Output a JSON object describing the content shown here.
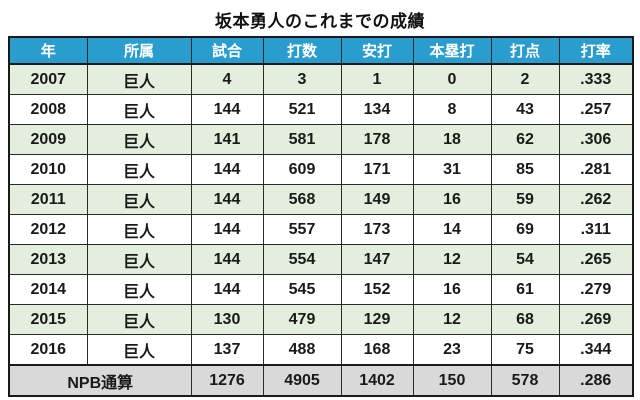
{
  "title": "坂本勇人のこれまでの成績",
  "colors": {
    "header_bg": "#2b9cce",
    "header_text": "#ffffff",
    "row_bg": "#ffffff",
    "row_alt_bg": "#e3efdc",
    "total_bg": "#d9d9d9",
    "border": "#1a1a1a"
  },
  "chart_data": {
    "type": "table",
    "title": "坂本勇人のこれまでの成績",
    "columns": [
      "年",
      "所属",
      "試合",
      "打数",
      "安打",
      "本塁打",
      "打点",
      "打率"
    ],
    "rows": [
      [
        "2007",
        "巨人",
        "4",
        "3",
        "1",
        "0",
        "2",
        ".333"
      ],
      [
        "2008",
        "巨人",
        "144",
        "521",
        "134",
        "8",
        "43",
        ".257"
      ],
      [
        "2009",
        "巨人",
        "141",
        "581",
        "178",
        "18",
        "62",
        ".306"
      ],
      [
        "2010",
        "巨人",
        "144",
        "609",
        "171",
        "31",
        "85",
        ".281"
      ],
      [
        "2011",
        "巨人",
        "144",
        "568",
        "149",
        "16",
        "59",
        ".262"
      ],
      [
        "2012",
        "巨人",
        "144",
        "557",
        "173",
        "14",
        "69",
        ".311"
      ],
      [
        "2013",
        "巨人",
        "144",
        "554",
        "147",
        "12",
        "54",
        ".265"
      ],
      [
        "2014",
        "巨人",
        "144",
        "545",
        "152",
        "16",
        "61",
        ".279"
      ],
      [
        "2015",
        "巨人",
        "130",
        "479",
        "129",
        "12",
        "68",
        ".269"
      ],
      [
        "2016",
        "巨人",
        "137",
        "488",
        "168",
        "23",
        "75",
        ".344"
      ]
    ],
    "total_row": {
      "label": "NPB通算",
      "values": [
        "1276",
        "4905",
        "1402",
        "150",
        "578",
        ".286"
      ]
    }
  }
}
